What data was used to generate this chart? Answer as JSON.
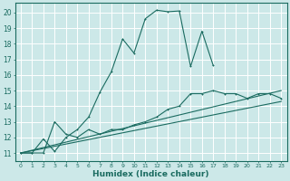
{
  "background_color": "#cce8e8",
  "grid_color": "#ffffff",
  "line_color": "#1a6b60",
  "x_label": "Humidex (Indice chaleur)",
  "ylim": [
    10.5,
    20.6
  ],
  "xlim": [
    -0.5,
    23.5
  ],
  "yticks": [
    11,
    12,
    13,
    14,
    15,
    16,
    17,
    18,
    19,
    20
  ],
  "xticks": [
    0,
    1,
    2,
    3,
    4,
    5,
    6,
    7,
    8,
    9,
    10,
    11,
    12,
    13,
    14,
    15,
    16,
    17,
    18,
    19,
    20,
    21,
    22,
    23
  ],
  "xtick_labels": [
    "0",
    "1",
    "2",
    "3",
    "4",
    "5",
    "6",
    "7",
    "8",
    "9",
    "1011",
    "12",
    "13",
    "14",
    "15",
    "16",
    "17",
    "18",
    "19",
    "20",
    "21",
    "2223",
    "",
    ""
  ],
  "series1_x": [
    0,
    1,
    2,
    3,
    4,
    5,
    6,
    7,
    8,
    9,
    10,
    11,
    12,
    13,
    14,
    15,
    16,
    17
  ],
  "series1_y": [
    11.0,
    11.0,
    11.9,
    11.1,
    12.0,
    12.5,
    13.3,
    14.9,
    16.2,
    18.3,
    17.4,
    19.6,
    20.15,
    20.05,
    20.1,
    16.55,
    18.8,
    16.6
  ],
  "series2_x": [
    0,
    1,
    2,
    3,
    4,
    5,
    6,
    7,
    8,
    9,
    10,
    11,
    12,
    13,
    14,
    15,
    16,
    17,
    18,
    19,
    20,
    21,
    22,
    23
  ],
  "series2_y": [
    11.0,
    11.0,
    11.0,
    13.0,
    12.2,
    12.0,
    12.5,
    12.2,
    12.5,
    12.5,
    12.8,
    13.0,
    13.3,
    13.8,
    14.0,
    14.8,
    14.8,
    15.0,
    14.8,
    14.8,
    14.5,
    14.8,
    14.8,
    14.5
  ],
  "series3_x": [
    0,
    23
  ],
  "series3_y": [
    11.0,
    14.3
  ],
  "series4_x": [
    0,
    23
  ],
  "series4_y": [
    11.0,
    15.0
  ]
}
